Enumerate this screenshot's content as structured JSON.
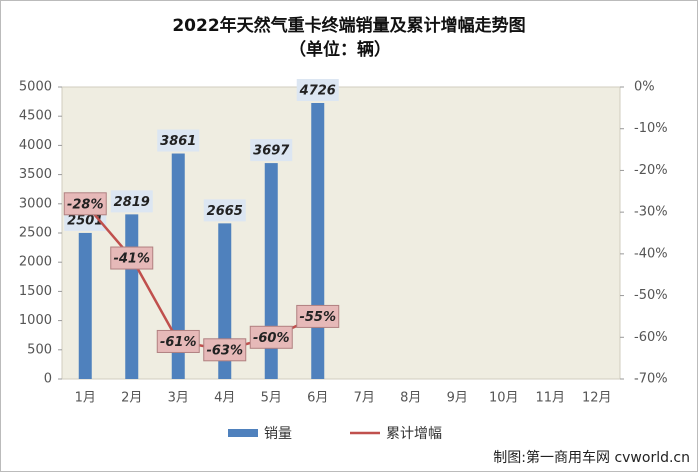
{
  "chart_data": {
    "type": "bar",
    "title": "2022年天然气重卡终端销量及累计增幅走势图",
    "subtitle": "（单位：辆）",
    "categories": [
      "1月",
      "2月",
      "3月",
      "4月",
      "5月",
      "6月",
      "7月",
      "8月",
      "9月",
      "10月",
      "11月",
      "12月"
    ],
    "series": [
      {
        "name": "销量",
        "type": "bar",
        "color": "#4f81bd",
        "values": [
          2501,
          2819,
          3861,
          2665,
          3697,
          4726,
          null,
          null,
          null,
          null,
          null,
          null
        ]
      },
      {
        "name": "累计增幅",
        "type": "line",
        "axis": "y2",
        "color": "#c0504d",
        "values": [
          -28,
          -41,
          -61,
          -63,
          -60,
          -55,
          null,
          null,
          null,
          null,
          null,
          null
        ],
        "value_labels": [
          "-28%",
          "-41%",
          "-61%",
          "-63%",
          "-60%",
          "-55%",
          null,
          null,
          null,
          null,
          null,
          null
        ]
      }
    ],
    "ylim": [
      0,
      5000
    ],
    "yticks": [
      0,
      500,
      1000,
      1500,
      2000,
      2500,
      3000,
      3500,
      4000,
      4500,
      5000
    ],
    "y2lim": [
      -70,
      0
    ],
    "y2ticks": [
      {
        "value": -70,
        "label": "-70%"
      },
      {
        "value": -60,
        "label": "-60%"
      },
      {
        "value": -50,
        "label": "-50%"
      },
      {
        "value": -40,
        "label": "-40%"
      },
      {
        "value": -30,
        "label": "-30%"
      },
      {
        "value": -20,
        "label": "-20%"
      },
      {
        "value": -10,
        "label": "-10%"
      },
      {
        "value": 0,
        "label": "0%"
      }
    ],
    "legend": "bottom",
    "source": "制图:第一商用车网 cvworld.cn"
  }
}
